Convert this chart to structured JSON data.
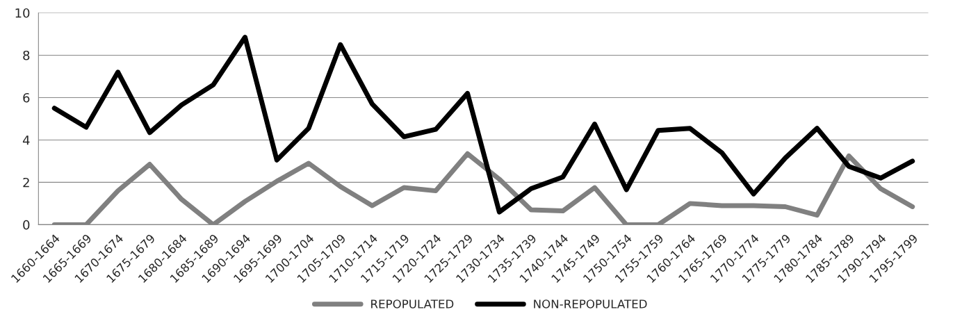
{
  "chart_data": {
    "type": "line",
    "categories": [
      "1660-1664",
      "1665-1669",
      "1670-1674",
      "1675-1679",
      "1680-1684",
      "1685-1689",
      "1690-1694",
      "1695-1699",
      "1700-1704",
      "1705-1709",
      "1710-1714",
      "1715-1719",
      "1720-1724",
      "1725-1729",
      "1730-1734",
      "1735-1739",
      "1740-1744",
      "1745-1749",
      "1750-1754",
      "1755-1759",
      "1760-1764",
      "1765-1769",
      "1770-1774",
      "1775-1779",
      "1780-1784",
      "1785-1789",
      "1790-1794",
      "1795-1799"
    ],
    "series": [
      {
        "name": "REPOPULATED",
        "color": "#808080",
        "values": [
          0,
          0,
          1.6,
          2.85,
          1.2,
          0,
          1.1,
          2.05,
          2.9,
          1.8,
          0.9,
          1.75,
          1.6,
          3.35,
          2.15,
          0.7,
          0.65,
          1.75,
          0,
          0,
          1.0,
          0.9,
          0.9,
          0.85,
          0.45,
          3.25,
          1.7,
          0.85
        ]
      },
      {
        "name": "NON-REPOPULATED",
        "color": "#000000",
        "values": [
          5.5,
          4.6,
          7.2,
          4.35,
          5.65,
          6.6,
          8.85,
          3.05,
          4.55,
          8.5,
          5.7,
          4.15,
          4.5,
          6.2,
          0.6,
          1.7,
          2.25,
          4.75,
          1.65,
          4.45,
          4.55,
          3.4,
          1.45,
          3.15,
          4.55,
          2.75,
          2.2,
          3.0
        ]
      }
    ],
    "ylim": [
      0,
      10
    ],
    "yticks": [
      0,
      2,
      4,
      6,
      8,
      10
    ],
    "grid": "y",
    "legend": "bottom",
    "marker": "none",
    "line_style": "solid"
  }
}
